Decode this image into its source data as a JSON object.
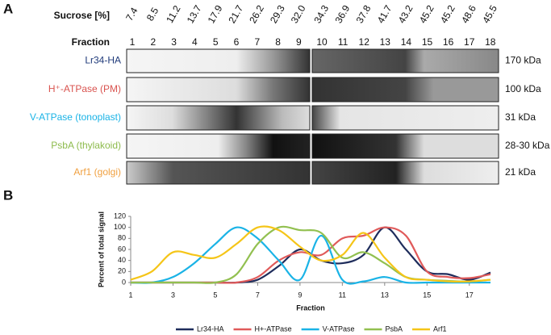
{
  "panel_a": {
    "label": "A",
    "sucrose_label": "Sucrose [%]",
    "sucrose": [
      "7.4",
      "8.5",
      "11.2",
      "13.7",
      "17.9",
      "21.7",
      "26.2",
      "29.3",
      "32.0",
      "34.3",
      "36.9",
      "37.8",
      "41.7",
      "43.2",
      "45.2",
      "45.2",
      "48.6",
      "45.5"
    ],
    "fraction_label": "Fraction",
    "fractions": [
      1,
      2,
      3,
      4,
      5,
      6,
      7,
      8,
      9,
      10,
      11,
      12,
      13,
      14,
      15,
      16,
      17,
      18
    ],
    "rows": [
      {
        "label": "Lr34-HA",
        "color": "#1f3a7a",
        "size": "170 kDa"
      },
      {
        "label": "H⁺-ATPase (PM)",
        "color": "#d9534f",
        "size": "100 kDa"
      },
      {
        "label": "V-ATPase (tonoplast)",
        "color": "#1ab3e6",
        "size": "31 kDa"
      },
      {
        "label": "PsbA (thylakoid)",
        "color": "#8dbb4c",
        "size": "28-30 kDa"
      },
      {
        "label": "Arf1 (golgi)",
        "color": "#f0a040",
        "size": "21 kDa"
      }
    ]
  },
  "panel_b": {
    "label": "B"
  },
  "chart_data": {
    "type": "line",
    "xlabel": "Fraction",
    "ylabel": "Percent of total signal",
    "x": [
      1,
      2,
      3,
      4,
      5,
      6,
      7,
      8,
      9,
      10,
      11,
      12,
      13,
      14,
      15,
      16,
      17,
      18
    ],
    "xlim": [
      1,
      18
    ],
    "xticks": [
      1,
      3,
      5,
      7,
      9,
      11,
      13,
      15,
      17
    ],
    "ylim": [
      0,
      120
    ],
    "yticks": [
      0,
      20,
      40,
      60,
      80,
      100,
      120
    ],
    "series": [
      {
        "name": "Lr34-HA",
        "color": "#1f2d5c",
        "values": [
          0,
          0,
          0,
          0,
          0,
          0,
          5,
          30,
          60,
          40,
          35,
          50,
          100,
          60,
          20,
          15,
          5,
          18
        ]
      },
      {
        "name": "H+-ATPase",
        "color": "#e05a5a",
        "values": [
          0,
          0,
          0,
          0,
          0,
          0,
          10,
          40,
          55,
          50,
          80,
          85,
          100,
          85,
          20,
          10,
          8,
          15
        ]
      },
      {
        "name": "V-ATPase",
        "color": "#1ab3e6",
        "values": [
          0,
          0,
          10,
          35,
          70,
          100,
          80,
          40,
          5,
          85,
          5,
          2,
          10,
          0,
          0,
          0,
          0,
          0
        ]
      },
      {
        "name": "PsbA",
        "color": "#92c050",
        "values": [
          0,
          0,
          0,
          0,
          0,
          15,
          70,
          100,
          95,
          90,
          45,
          55,
          35,
          10,
          5,
          3,
          2,
          5
        ]
      },
      {
        "name": "Arf1",
        "color": "#f5c518",
        "values": [
          5,
          20,
          55,
          50,
          45,
          70,
          100,
          95,
          65,
          40,
          50,
          90,
          45,
          10,
          5,
          2,
          2,
          5
        ]
      }
    ]
  }
}
